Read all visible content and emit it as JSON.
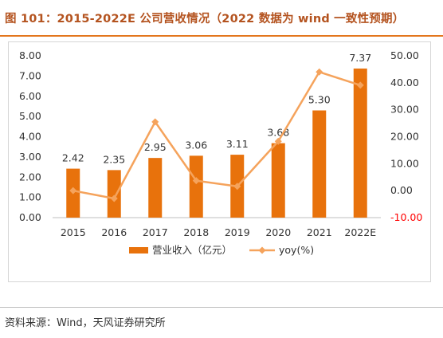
{
  "header": {
    "title": "图 101：2015-2022E 公司营收情况（2022 数据为 wind 一致性预期）"
  },
  "footer": {
    "source": "资料来源：Wind，天风证券研究所"
  },
  "chart_data": {
    "type": "bar",
    "categories": [
      "2015",
      "2016",
      "2017",
      "2018",
      "2019",
      "2020",
      "2021",
      "2022E"
    ],
    "series": [
      {
        "name": "营业收入（亿元）",
        "type": "bar",
        "axis": "left",
        "values": [
          2.42,
          2.35,
          2.95,
          3.06,
          3.11,
          3.68,
          5.3,
          7.37
        ],
        "labels": [
          "2.42",
          "2.35",
          "2.95",
          "3.06",
          "3.11",
          "3.68",
          "5.30",
          "7.37"
        ]
      },
      {
        "name": "yoy(%)",
        "type": "line",
        "axis": "right",
        "values": [
          0.0,
          -2.9,
          25.5,
          3.7,
          1.6,
          18.3,
          44.0,
          39.1
        ]
      }
    ],
    "left_axis": {
      "ylim": [
        0,
        8
      ],
      "ticks": [
        "0.00",
        "1.00",
        "2.00",
        "3.00",
        "4.00",
        "5.00",
        "6.00",
        "7.00",
        "8.00"
      ]
    },
    "right_axis": {
      "ylim": [
        -10,
        50
      ],
      "ticks": [
        "-10.00",
        "0.00",
        "10.00",
        "20.00",
        "30.00",
        "40.00",
        "50.00"
      ]
    },
    "grid": false,
    "legend_position": "bottom",
    "colors": {
      "bar": "#e8720c",
      "line": "#f5a35c",
      "negative_tick": "#ff0000",
      "title": "#b4531f",
      "rule": "#e3761d"
    }
  }
}
